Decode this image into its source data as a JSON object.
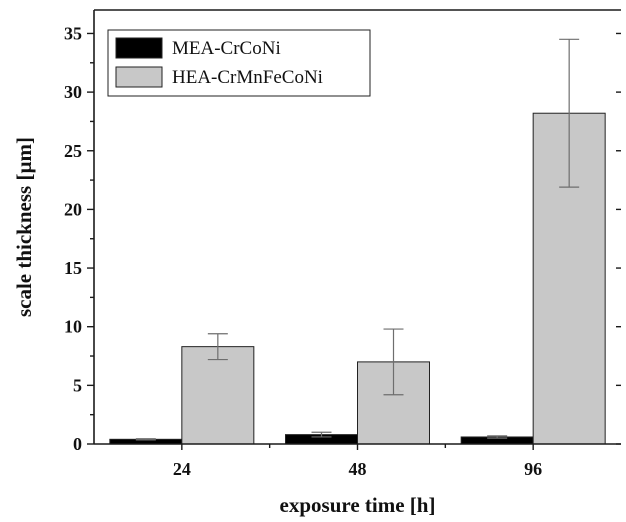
{
  "chart_data": {
    "type": "bar",
    "title": "",
    "xlabel": "exposure time [h]",
    "ylabel": "scale thickness [µm]",
    "categories": [
      "24",
      "48",
      "96"
    ],
    "ylim": [
      0,
      37
    ],
    "yticks": [
      0,
      5,
      10,
      15,
      20,
      25,
      30,
      35
    ],
    "grid": false,
    "legend_position": "top-left",
    "series": [
      {
        "name": "MEA-CrCoNi",
        "color": "#000000",
        "values": [
          0.4,
          0.8,
          0.6
        ],
        "errors": [
          0.05,
          0.2,
          0.1
        ]
      },
      {
        "name": "HEA-CrMnFeCoNi",
        "color": "#c8c8c8",
        "values": [
          8.3,
          7.0,
          28.2
        ],
        "errors": [
          1.1,
          2.8,
          6.3
        ]
      }
    ]
  }
}
